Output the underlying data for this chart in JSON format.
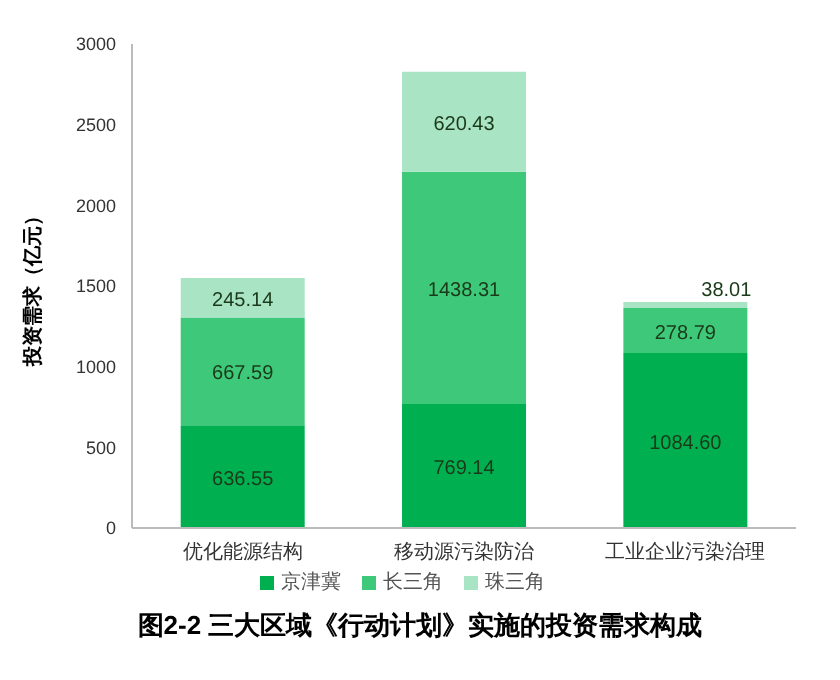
{
  "chart_data": {
    "type": "bar",
    "title": "图2-2 三大区域《行动计划》实施的投资需求构成",
    "ylabel": "投资需求（亿元）",
    "categories": [
      "优化能源结构",
      "移动源污染防治",
      "工业企业污染治理"
    ],
    "stacked": true,
    "series": [
      {
        "name": "京津冀",
        "color": "#00b050",
        "values": [
          636.55,
          769.14,
          1084.6
        ]
      },
      {
        "name": "长三角",
        "color": "#3ec87a",
        "values": [
          667.59,
          1438.31,
          278.79
        ]
      },
      {
        "name": "珠三角",
        "color": "#a9e4c5",
        "values": [
          245.14,
          620.43,
          38.01
        ]
      }
    ],
    "value_labels": [
      [
        "636.55",
        "769.14",
        "1084.60"
      ],
      [
        "667.59",
        "1438.31",
        "278.79"
      ],
      [
        "245.14",
        "620.43",
        "38.01"
      ]
    ],
    "ylim": [
      0,
      3000
    ],
    "yticks": [
      0,
      500,
      1000,
      1500,
      2000,
      2500,
      3000
    ],
    "grid": false,
    "legend": "bottom"
  }
}
